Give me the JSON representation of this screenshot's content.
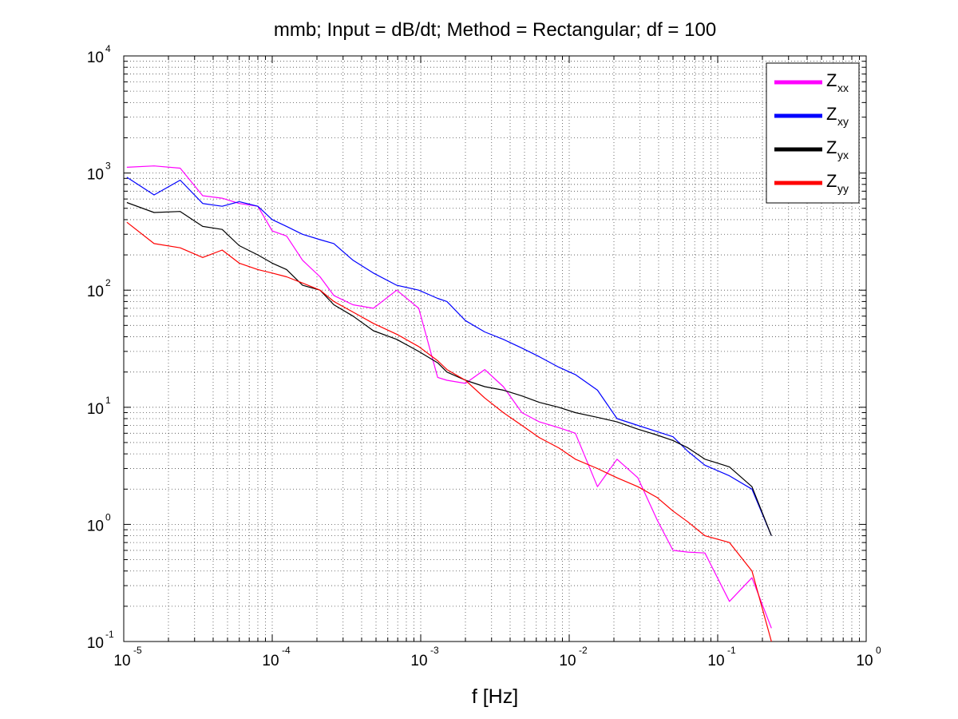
{
  "chart_data": {
    "type": "line",
    "title": "mmb; Input = dB/dt; Method = Rectangular; df = 100",
    "xlabel": "f [Hz]",
    "ylabel": "",
    "x_scale": "log",
    "y_scale": "log",
    "xlim": [
      1e-05,
      1
    ],
    "ylim": [
      0.1,
      10000
    ],
    "x_ticks": [
      {
        "base": "10",
        "exp": "-5",
        "value": 1e-05
      },
      {
        "base": "10",
        "exp": "-4",
        "value": 0.0001
      },
      {
        "base": "10",
        "exp": "-3",
        "value": 0.001
      },
      {
        "base": "10",
        "exp": "-2",
        "value": 0.01
      },
      {
        "base": "10",
        "exp": "-1",
        "value": 0.1
      },
      {
        "base": "10",
        "exp": "0",
        "value": 1
      }
    ],
    "y_ticks": [
      {
        "base": "10",
        "exp": "-1",
        "value": 0.1
      },
      {
        "base": "10",
        "exp": "0",
        "value": 1
      },
      {
        "base": "10",
        "exp": "1",
        "value": 10
      },
      {
        "base": "10",
        "exp": "2",
        "value": 100
      },
      {
        "base": "10",
        "exp": "3",
        "value": 1000
      },
      {
        "base": "10",
        "exp": "4",
        "value": 10000
      }
    ],
    "grid": true,
    "minor_grid": true,
    "legend_position": "top-right",
    "series": [
      {
        "name": "Z",
        "subscript": "xx",
        "color": "#ff00ff",
        "x": [
          1.05e-05,
          1.6e-05,
          2.4e-05,
          3.4e-05,
          4.6e-05,
          6e-05,
          8e-05,
          0.0001,
          0.000125,
          0.00016,
          0.00021,
          0.00026,
          0.00035,
          0.00048,
          0.00069,
          0.00097,
          0.0013,
          0.0015,
          0.002,
          0.0027,
          0.0036,
          0.0048,
          0.0063,
          0.0085,
          0.011,
          0.0155,
          0.021,
          0.029,
          0.039,
          0.05,
          0.063,
          0.082,
          0.12,
          0.17,
          0.23
        ],
        "y": [
          1120,
          1150,
          1100,
          640,
          610,
          550,
          520,
          320,
          290,
          180,
          130,
          90,
          75,
          70,
          100,
          70,
          18,
          17,
          16,
          21,
          15,
          9,
          7.5,
          6.7,
          6,
          2.1,
          3.6,
          2.5,
          1.1,
          0.6,
          0.58,
          0.57,
          0.22,
          0.35,
          0.13
        ]
      },
      {
        "name": "Z",
        "subscript": "xy",
        "color": "#0000ff",
        "x": [
          1.05e-05,
          1.6e-05,
          2.4e-05,
          3.4e-05,
          4.6e-05,
          6e-05,
          8e-05,
          0.0001,
          0.000125,
          0.00016,
          0.00021,
          0.00026,
          0.00035,
          0.00048,
          0.00069,
          0.00097,
          0.0013,
          0.0015,
          0.002,
          0.0027,
          0.0036,
          0.0048,
          0.0063,
          0.0085,
          0.011,
          0.0155,
          0.021,
          0.029,
          0.039,
          0.05,
          0.063,
          0.082,
          0.12,
          0.17,
          0.23
        ],
        "y": [
          920,
          650,
          870,
          550,
          520,
          570,
          520,
          400,
          350,
          300,
          270,
          250,
          180,
          140,
          110,
          100,
          85,
          80,
          55,
          44,
          38,
          32,
          27,
          22,
          19,
          14,
          8,
          7,
          6.2,
          5.6,
          4.2,
          3.2,
          2.6,
          2,
          0.8
        ]
      },
      {
        "name": "Z",
        "subscript": "yx",
        "color": "#000000",
        "x": [
          1.05e-05,
          1.6e-05,
          2.4e-05,
          3.4e-05,
          4.6e-05,
          6e-05,
          8e-05,
          0.0001,
          0.000125,
          0.00016,
          0.00021,
          0.00026,
          0.00035,
          0.00048,
          0.00069,
          0.00097,
          0.0013,
          0.0015,
          0.002,
          0.0027,
          0.0036,
          0.0048,
          0.0063,
          0.0085,
          0.011,
          0.0155,
          0.021,
          0.029,
          0.039,
          0.05,
          0.063,
          0.082,
          0.12,
          0.17,
          0.23
        ],
        "y": [
          560,
          460,
          470,
          350,
          330,
          240,
          200,
          170,
          150,
          110,
          100,
          75,
          60,
          45,
          38,
          30,
          24,
          20,
          17,
          15,
          14,
          12.5,
          11,
          10,
          9,
          8.2,
          7.5,
          6.5,
          5.8,
          5.2,
          4.5,
          3.6,
          3.1,
          2.1,
          0.8
        ]
      },
      {
        "name": "Z",
        "subscript": "yy",
        "color": "#ff0000",
        "x": [
          1.05e-05,
          1.6e-05,
          2.4e-05,
          3.4e-05,
          4.6e-05,
          6e-05,
          8e-05,
          0.0001,
          0.000125,
          0.00016,
          0.00021,
          0.00026,
          0.00035,
          0.00048,
          0.00069,
          0.00097,
          0.0013,
          0.0015,
          0.002,
          0.0027,
          0.0036,
          0.0048,
          0.0063,
          0.0085,
          0.011,
          0.0155,
          0.021,
          0.029,
          0.039,
          0.05,
          0.063,
          0.082,
          0.12,
          0.17,
          0.23
        ],
        "y": [
          380,
          250,
          230,
          190,
          220,
          170,
          150,
          140,
          130,
          115,
          100,
          80,
          65,
          52,
          42,
          33,
          25,
          21,
          17,
          12,
          9,
          7,
          5.5,
          4.5,
          3.6,
          3,
          2.5,
          2.1,
          1.7,
          1.3,
          1.05,
          0.8,
          0.7,
          0.4,
          0.1
        ]
      }
    ]
  }
}
